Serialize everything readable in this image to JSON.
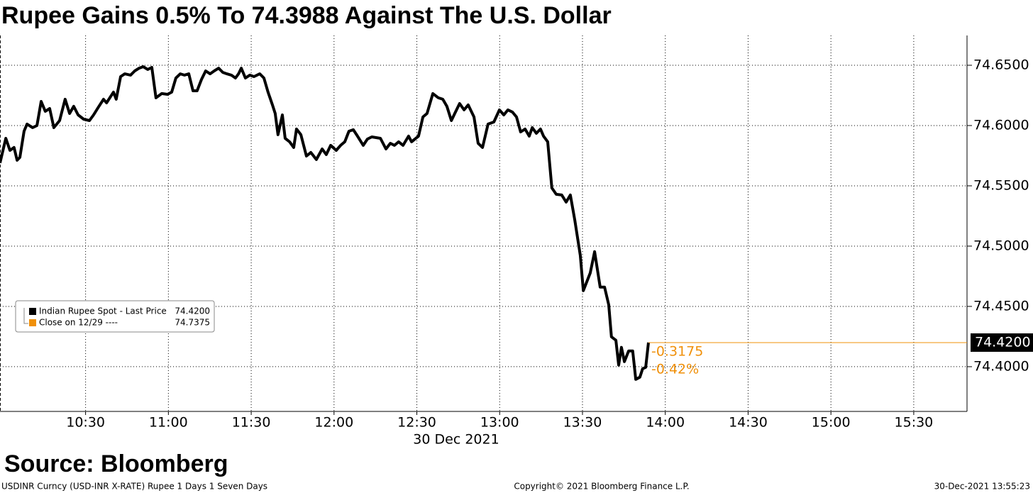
{
  "chart_data": {
    "type": "line",
    "title": "Rupee Gains 0.5% To 74.3988 Against The U.S. Dollar",
    "date_label": "30 Dec 2021",
    "source": "Source: Bloomberg",
    "footer_left": "USDINR Curncy (USD-INR X-RATE) Rupee 1 Days 1 Seven Days",
    "footer_center": "Copyright© 2021 Bloomberg Finance L.P.",
    "footer_right": "30-Dec-2021 13:55:23",
    "x": [
      599.0,
      601.1,
      602.6,
      604.1,
      605.2,
      606.2,
      607.7,
      608.8,
      610.8,
      612.4,
      613.9,
      615.4,
      617.0,
      618.5,
      620.6,
      622.6,
      624.2,
      625.7,
      627.3,
      629.3,
      631.4,
      632.9,
      634.5,
      636.5,
      637.6,
      640.1,
      641.1,
      642.7,
      644.2,
      646.3,
      647.8,
      649.4,
      650.9,
      652.5,
      654.0,
      655.5,
      657.6,
      659.7,
      661.2,
      662.7,
      664.3,
      665.8,
      667.4,
      668.9,
      670.4,
      672.0,
      673.5,
      675.1,
      676.6,
      678.2,
      679.7,
      681.2,
      682.8,
      684.3,
      685.4,
      686.4,
      687.9,
      689.5,
      691.0,
      693.1,
      694.6,
      696.1,
      697.7,
      698.7,
      699.7,
      701.3,
      702.3,
      703.9,
      705.4,
      706.4,
      708.0,
      710.0,
      711.6,
      713.6,
      715.7,
      717.2,
      718.8,
      720.8,
      722.4,
      723.9,
      725.4,
      727.0,
      728.5,
      730.6,
      732.1,
      733.7,
      736.8,
      738.8,
      740.4,
      741.9,
      743.4,
      745.0,
      747.0,
      748.1,
      750.6,
      752.2,
      753.7,
      755.8,
      757.8,
      759.4,
      760.9,
      762.5,
      764.0,
      765.5,
      767.1,
      768.6,
      770.7,
      772.2,
      773.8,
      775.8,
      777.9,
      779.9,
      781.5,
      783.0,
      784.6,
      786.1,
      787.6,
      789.2,
      790.7,
      791.8,
      793.3,
      794.8,
      795.9,
      797.4,
      798.9,
      800.5,
      802.5,
      804.1,
      805.6,
      807.2,
      809.2,
      810.3,
      811.8,
      812.8,
      814.4,
      816.4,
      818.0,
      819.5,
      820.5,
      822.1,
      823.1,
      824.1,
      825.2,
      826.7,
      828.2,
      829.3,
      830.8,
      831.8,
      832.9,
      833.9
    ],
    "series": [
      {
        "name": "Indian Rupee Spot - Last Price",
        "color": "#000000",
        "values": [
          74.5689,
          74.5894,
          74.5794,
          74.5818,
          74.5712,
          74.5736,
          74.5953,
          74.6012,
          74.5983,
          74.6,
          74.62,
          74.6118,
          74.6141,
          74.5983,
          74.6041,
          74.6218,
          74.61,
          74.6159,
          74.6088,
          74.6053,
          74.6041,
          74.6088,
          74.6147,
          74.6218,
          74.6188,
          74.6277,
          74.6218,
          74.6406,
          74.6429,
          74.6418,
          74.6453,
          74.6476,
          74.6488,
          74.6465,
          74.6482,
          74.623,
          74.6265,
          74.6259,
          74.6277,
          74.6394,
          74.6429,
          74.6418,
          74.6429,
          74.6288,
          74.6288,
          74.6382,
          74.6453,
          74.6429,
          74.6453,
          74.6476,
          74.6441,
          74.6429,
          74.6418,
          74.6394,
          74.6429,
          74.6476,
          74.6394,
          74.6418,
          74.6406,
          74.6429,
          74.6394,
          74.6277,
          74.6171,
          74.61,
          74.5924,
          74.6088,
          74.5894,
          74.5865,
          74.5818,
          74.5971,
          74.5924,
          74.5747,
          74.5777,
          74.5718,
          74.5806,
          74.5759,
          74.5836,
          74.5794,
          74.5836,
          74.5865,
          74.5953,
          74.5965,
          74.5912,
          74.5836,
          74.5888,
          74.5906,
          74.5894,
          74.5806,
          74.5853,
          74.5836,
          74.5865,
          74.5836,
          74.5912,
          74.5865,
          74.5912,
          74.6071,
          74.61,
          74.6265,
          74.623,
          74.6218,
          74.6159,
          74.6041,
          74.6112,
          74.6182,
          74.613,
          74.6171,
          74.6071,
          74.5853,
          74.5818,
          74.6012,
          74.6029,
          74.613,
          74.6088,
          74.613,
          74.6112,
          74.6071,
          74.5947,
          74.5971,
          74.5912,
          74.5983,
          74.5936,
          74.5971,
          74.5912,
          74.5865,
          74.5483,
          74.543,
          74.5424,
          74.5365,
          74.5424,
          74.5218,
          74.4924,
          74.463,
          74.4718,
          74.4777,
          74.4954,
          74.466,
          74.466,
          74.4513,
          74.4248,
          74.4219,
          74.4013,
          74.416,
          74.4042,
          74.413,
          74.413,
          74.3895,
          74.3913,
          74.3983,
          74.3995,
          74.42
        ]
      }
    ],
    "last_value": {
      "value": 74.42,
      "label": "74.4200"
    },
    "change": -0.3175,
    "change_pct": {
      "value": -0.42,
      "label": "-0.42%"
    },
    "reference": {
      "name": "Close on 12/29 ----",
      "value": 74.7375,
      "color": "#f0900a"
    },
    "legend": "left",
    "grid": true,
    "xlim": [
      599,
      949.3
    ],
    "xticks": [
      {
        "value": 630,
        "label": "10:30"
      },
      {
        "value": 660,
        "label": "11:00"
      },
      {
        "value": 690,
        "label": "11:30"
      },
      {
        "value": 720,
        "label": "12:00"
      },
      {
        "value": 750,
        "label": "12:30"
      },
      {
        "value": 780,
        "label": "13:00"
      },
      {
        "value": 810,
        "label": "13:30"
      },
      {
        "value": 840,
        "label": "14:00"
      },
      {
        "value": 870,
        "label": "14:30"
      },
      {
        "value": 900,
        "label": "15:00"
      },
      {
        "value": 930,
        "label": "15:30"
      }
    ],
    "ylim": [
      74.3629,
      74.6747
    ],
    "yticks": [
      {
        "value": 74.4,
        "label": "74.4000"
      },
      {
        "value": 74.45,
        "label": "74.4500"
      },
      {
        "value": 74.5,
        "label": "74.5000"
      },
      {
        "value": 74.55,
        "label": "74.5500"
      },
      {
        "value": 74.6,
        "label": "74.6000"
      },
      {
        "value": 74.65,
        "label": "74.6500"
      }
    ]
  }
}
